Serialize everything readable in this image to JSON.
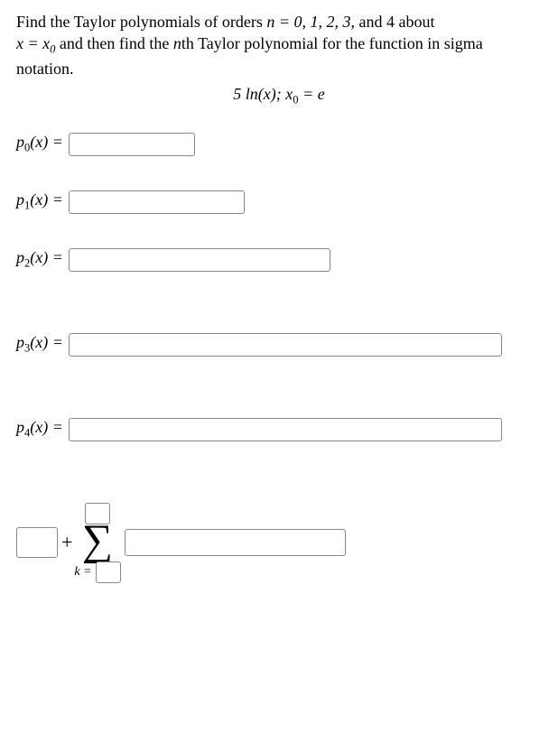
{
  "problem": {
    "text_before_n": "Find the Taylor polynomials of orders ",
    "n_eq": "n = 0, 1, 2, 3,",
    "text_mid": " and 4 about ",
    "x_eq": "x = x",
    "x_sub": "0",
    "text_after": " and then find the ",
    "nth": "n",
    "text_end": "th Taylor polynomial for the function in sigma notation."
  },
  "function": {
    "expr": "5 ln(x); x",
    "sub": "0",
    "tail": " = e"
  },
  "rows": {
    "p0": {
      "label": "p",
      "sub": "0",
      "arg": "(x) ="
    },
    "p1": {
      "label": "p",
      "sub": "1",
      "arg": "(x) ="
    },
    "p2": {
      "label": "p",
      "sub": "2",
      "arg": "(x) ="
    },
    "p3": {
      "label": "p",
      "sub": "3",
      "arg": "(x) ="
    },
    "p4": {
      "label": "p",
      "sub": "4",
      "arg": "(x) ="
    }
  },
  "sigma": {
    "plus": "+",
    "symbol": "∑",
    "lower_label": "k ="
  }
}
